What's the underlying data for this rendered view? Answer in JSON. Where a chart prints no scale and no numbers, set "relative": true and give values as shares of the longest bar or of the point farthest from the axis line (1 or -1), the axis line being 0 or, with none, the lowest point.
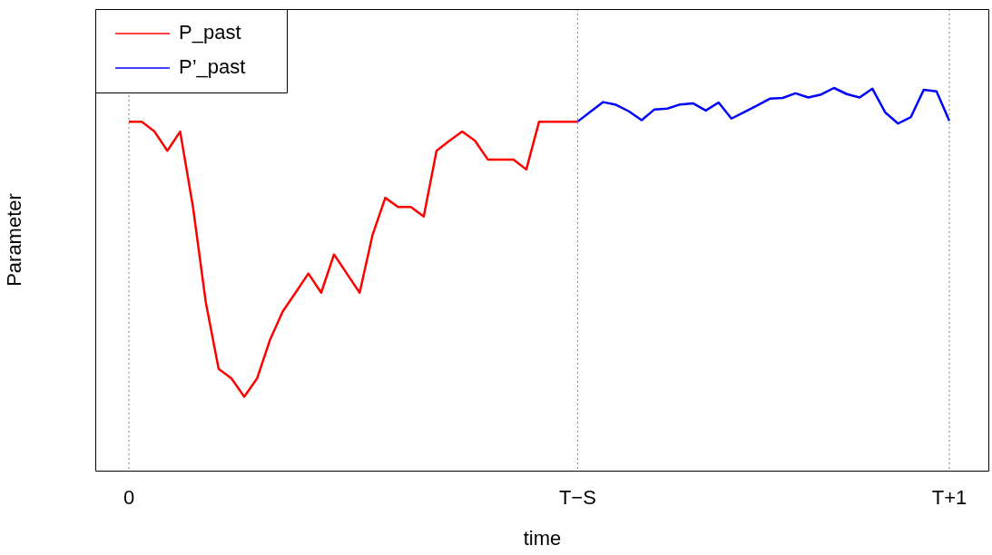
{
  "chart_data": {
    "type": "line",
    "relative": true,
    "xlabel": "time",
    "ylabel": "Parameter",
    "categories": [
      "0",
      null,
      null,
      null,
      null,
      null,
      null,
      null,
      null,
      null,
      null,
      null,
      null,
      null,
      null,
      null,
      null,
      null,
      null,
      null,
      null,
      null,
      null,
      null,
      null,
      null,
      null,
      null,
      null,
      null,
      null,
      null,
      null,
      null,
      null,
      "T−S",
      null,
      null,
      null,
      null,
      null,
      null,
      null,
      null,
      null,
      null,
      null,
      null,
      null,
      null,
      null,
      null,
      null,
      null,
      null,
      null,
      null,
      null,
      null,
      null,
      null,
      null,
      null,
      null,
      "T+1"
    ],
    "series": [
      {
        "name": "P_past",
        "color": "#ff0000",
        "values": [
          0.912,
          0.912,
          0.886,
          0.836,
          0.886,
          0.689,
          0.44,
          0.266,
          0.241,
          0.193,
          0.241,
          0.341,
          0.416,
          0.465,
          0.515,
          0.465,
          0.565,
          0.515,
          0.465,
          0.615,
          0.713,
          0.689,
          0.689,
          0.664,
          0.836,
          0.862,
          0.886,
          0.862,
          0.813,
          0.813,
          0.813,
          0.787,
          0.912,
          0.912,
          0.912,
          0.912,
          null,
          null,
          null,
          null,
          null,
          null,
          null,
          null,
          null,
          null,
          null,
          null,
          null,
          null,
          null,
          null,
          null,
          null,
          null,
          null,
          null,
          null,
          null,
          null,
          null,
          null,
          null,
          null,
          null
        ]
      },
      {
        "name": "P’_past",
        "color": "#0000ff",
        "values": [
          null,
          null,
          null,
          null,
          null,
          null,
          null,
          null,
          null,
          null,
          null,
          null,
          null,
          null,
          null,
          null,
          null,
          null,
          null,
          null,
          null,
          null,
          null,
          null,
          null,
          null,
          null,
          null,
          null,
          null,
          null,
          null,
          null,
          null,
          null,
          0.912,
          0.938,
          0.963,
          0.956,
          0.939,
          0.916,
          0.944,
          0.946,
          0.957,
          0.96,
          0.941,
          0.962,
          0.92,
          0.937,
          0.954,
          0.972,
          0.974,
          0.986,
          0.975,
          0.983,
          1.0,
          0.984,
          0.975,
          0.998,
          0.936,
          0.907,
          0.924,
          0.995,
          0.991,
          0.914
        ]
      }
    ],
    "ref_lines": [
      {
        "axis": "x",
        "value": "0",
        "color": "#808080",
        "line_style": "dotted"
      },
      {
        "axis": "x",
        "value": "T−S",
        "color": "#808080",
        "line_style": "dotted"
      },
      {
        "axis": "x",
        "value": "T+1",
        "color": "#808080",
        "line_style": "dotted"
      }
    ],
    "legend": "top left",
    "grid": false,
    "marker": "none",
    "line_style": "solid"
  }
}
